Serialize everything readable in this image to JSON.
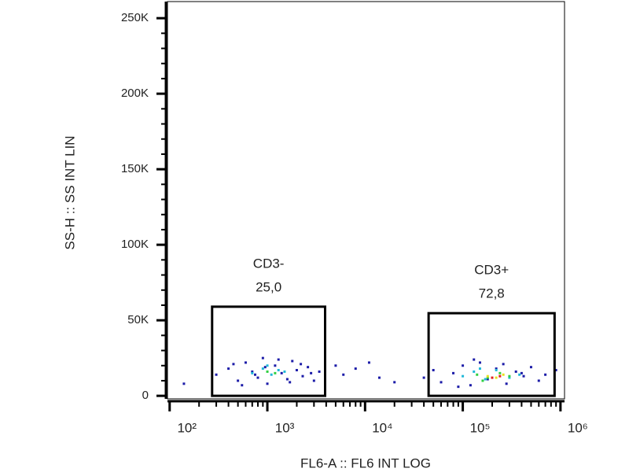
{
  "chart_data": {
    "type": "scatter",
    "xlabel": "FL6-A :: FL6 INT LOG",
    "ylabel": "SS-H :: SS INT LIN",
    "xscale": "log",
    "xlim": [
      95,
      1100000
    ],
    "ylim": [
      -2000,
      261000
    ],
    "xticks": [
      {
        "value": 100,
        "label": "10²"
      },
      {
        "value": 1000,
        "label": "10³"
      },
      {
        "value": 10000,
        "label": "10⁴"
      },
      {
        "value": 100000,
        "label": "10⁵"
      },
      {
        "value": 1000000,
        "label": "10⁶"
      }
    ],
    "yticks": [
      0,
      {
        "value": 50000,
        "label": "50K"
      },
      {
        "value": 100000,
        "label": "100K"
      },
      {
        "value": 150000,
        "label": "150K"
      },
      {
        "value": 200000,
        "label": "200K"
      },
      {
        "value": 250000,
        "label": "250K"
      }
    ],
    "density_layers": [
      {
        "color": "#1c1ca8",
        "x": [
          300,
          400,
          500,
          600,
          700,
          800,
          900,
          1000,
          1200,
          1400,
          1600,
          1800,
          2000,
          2300,
          2600,
          3000,
          3400,
          450,
          550,
          750,
          950,
          1300,
          1700,
          2200,
          2800,
          5000,
          6000,
          8000,
          11000,
          14000,
          20000,
          40000,
          50000,
          60000,
          80000,
          100000,
          120000,
          150000,
          180000,
          220000,
          280000,
          350000,
          420000,
          500000,
          600000,
          700000,
          900000,
          90000,
          130000,
          260000,
          400000,
          140
        ],
        "y": [
          14000,
          18000,
          10000,
          22000,
          16000,
          12000,
          25000,
          8000,
          20000,
          15000,
          11000,
          23000,
          17000,
          13000,
          19000,
          10000,
          16000,
          21000,
          7000,
          14000,
          19000,
          24000,
          9000,
          21000,
          15000,
          20000,
          14000,
          18000,
          22000,
          12000,
          9000,
          12000,
          17000,
          9000,
          15000,
          20000,
          7000,
          22000,
          11000,
          18000,
          8000,
          16000,
          13000,
          19000,
          10000,
          14000,
          17000,
          6000,
          24000,
          21000,
          15000,
          8000
        ]
      },
      {
        "color": "#20b8d8",
        "x": [
          700,
          900,
          1100,
          1300,
          1500,
          1000,
          100000,
          130000,
          170000,
          220000,
          300000,
          380000,
          150000
        ],
        "y": [
          15000,
          18000,
          14000,
          17000,
          16000,
          20000,
          13000,
          16000,
          11000,
          17000,
          12000,
          14000,
          18000
        ]
      },
      {
        "color": "#30d040",
        "x": [
          1000,
          1200,
          140000,
          180000,
          240000,
          300000,
          160000
        ],
        "y": [
          16000,
          15000,
          14000,
          12000,
          15000,
          13000,
          10000
        ]
      },
      {
        "color": "#e8e020",
        "x": [
          180000,
          220000,
          260000
        ],
        "y": [
          13000,
          12000,
          14000
        ]
      },
      {
        "color": "#e02020",
        "x": [
          200000,
          240000
        ],
        "y": [
          12000,
          13000
        ]
      }
    ],
    "gates": [
      {
        "name": "CD3-",
        "value": 25.0,
        "value_label": "25,0",
        "x": [
          272,
          3900
        ],
        "y": [
          0,
          59000
        ]
      },
      {
        "name": "CD3+",
        "value": 72.8,
        "value_label": "72,8",
        "x": [
          44700,
          870000
        ],
        "y": [
          0,
          54700
        ]
      }
    ]
  }
}
